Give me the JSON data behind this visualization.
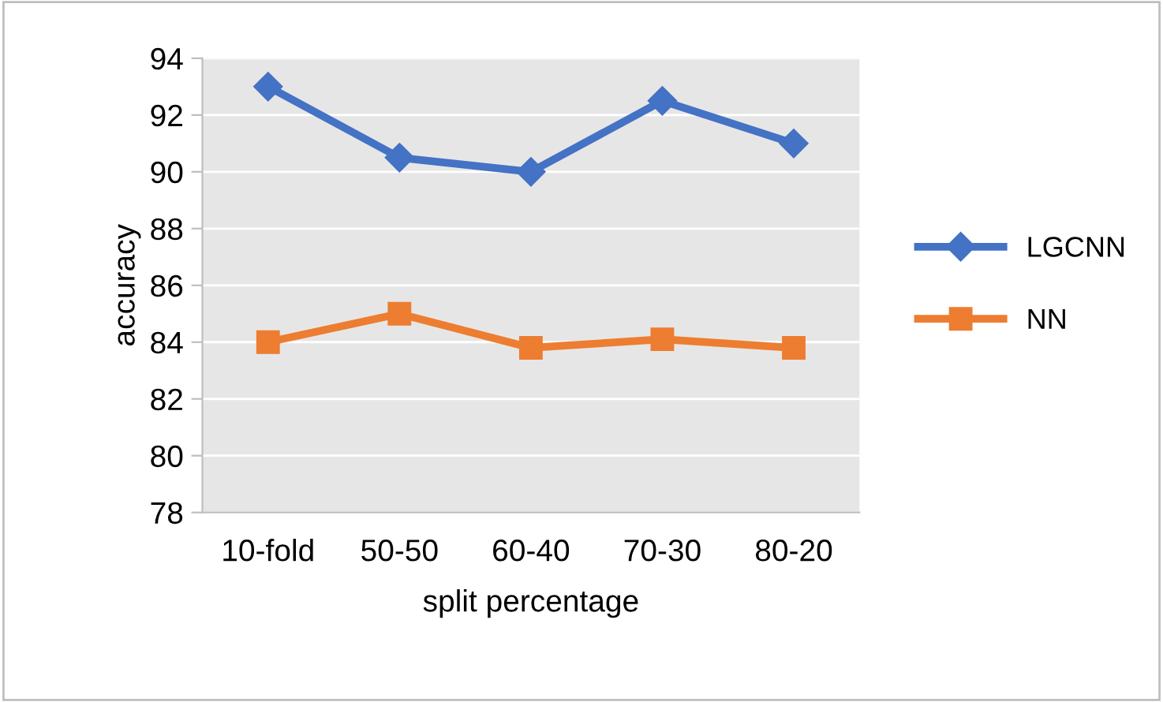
{
  "chart_data": {
    "type": "line",
    "xlabel": "split percentage",
    "ylabel": "accuracy",
    "categories": [
      "10-fold",
      "50-50",
      "60-40",
      "70-30",
      "80-20"
    ],
    "series": [
      {
        "name": "LGCNN",
        "color": "#4472c4",
        "marker": "diamond",
        "values": [
          93,
          90.5,
          90,
          92.5,
          91
        ]
      },
      {
        "name": "NN",
        "color": "#ed7d31",
        "marker": "square",
        "values": [
          84,
          85,
          83.8,
          84.1,
          83.8
        ]
      }
    ],
    "ylim": [
      78,
      94
    ],
    "yticks": [
      78,
      80,
      82,
      84,
      86,
      88,
      90,
      92,
      94
    ],
    "grid": "y",
    "legend": "right"
  }
}
